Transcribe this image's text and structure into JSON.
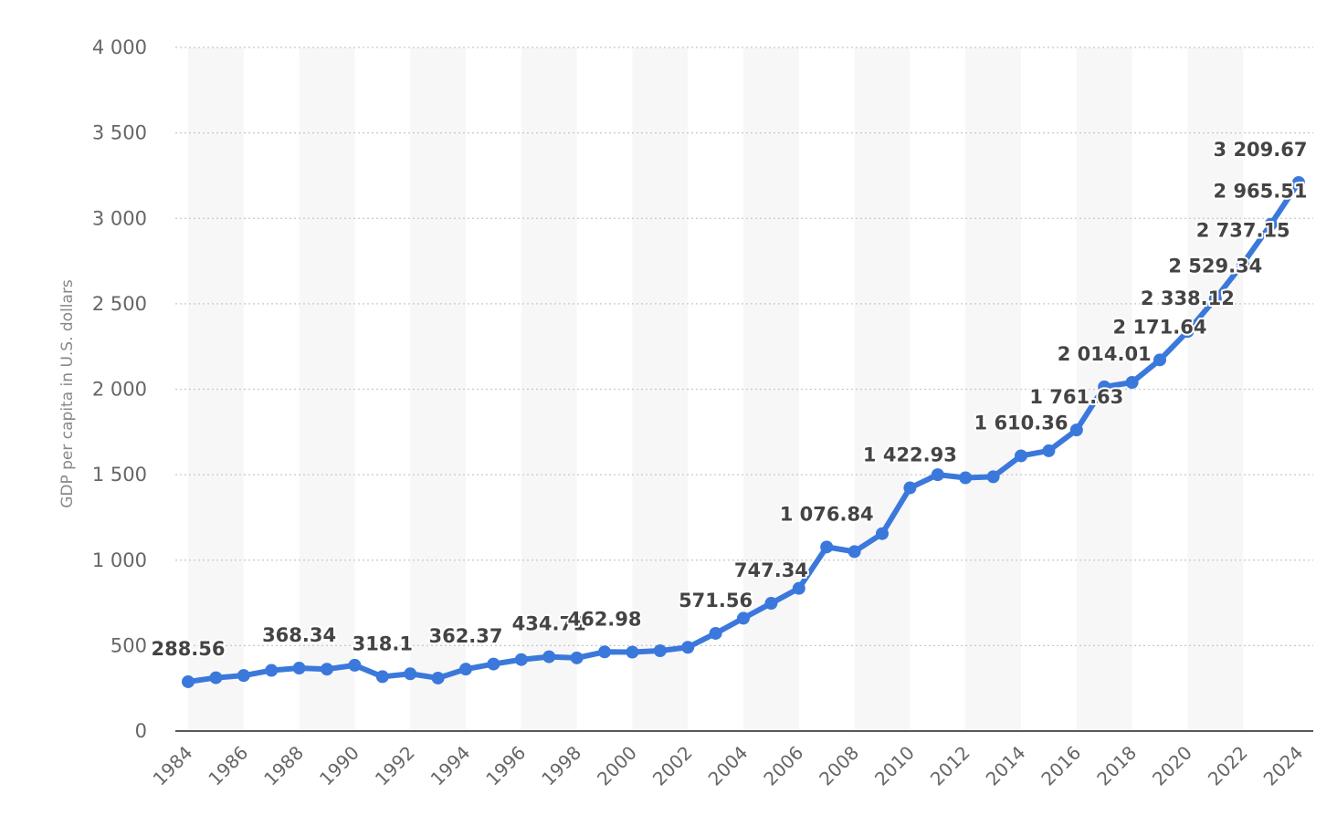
{
  "chart_data": {
    "type": "line",
    "x": [
      1984,
      1985,
      1986,
      1987,
      1988,
      1989,
      1990,
      1991,
      1992,
      1993,
      1994,
      1995,
      1996,
      1997,
      1998,
      1999,
      2000,
      2001,
      2002,
      2003,
      2004,
      2005,
      2006,
      2007,
      2008,
      2009,
      2010,
      2011,
      2012,
      2013,
      2014,
      2015,
      2016,
      2017,
      2018,
      2019,
      2020,
      2021,
      2022,
      2023,
      2024
    ],
    "series": [
      {
        "values": [
          288.56,
          312,
          325,
          355,
          368.34,
          362,
          385,
          318.1,
          335,
          310,
          362.37,
          392,
          418,
          434.71,
          428,
          462.98,
          462,
          470,
          490,
          571.56,
          660,
          747.34,
          835,
          1076.84,
          1050,
          1155,
          1422.93,
          1500,
          1482,
          1488,
          1610.36,
          1640,
          1761.63,
          2014.01,
          2040,
          2171.64,
          2338.12,
          2529.34,
          2737.15,
          2965.51,
          3209.67
        ],
        "color": "#3b78dc"
      }
    ],
    "data_labels": [
      {
        "year": 1984,
        "text": "288.56"
      },
      {
        "year": 1988,
        "text": "368.34"
      },
      {
        "year": 1991,
        "text": "318.1"
      },
      {
        "year": 1994,
        "text": "362.37"
      },
      {
        "year": 1997,
        "text": "434.71"
      },
      {
        "year": 1999,
        "text": "462.98"
      },
      {
        "year": 2003,
        "text": "571.56"
      },
      {
        "year": 2005,
        "text": "747.34"
      },
      {
        "year": 2007,
        "text": "1 076.84"
      },
      {
        "year": 2010,
        "text": "1 422.93"
      },
      {
        "year": 2014,
        "text": "1 610.36"
      },
      {
        "year": 2016,
        "text": "1 761.63"
      },
      {
        "year": 2017,
        "text": "2 014.01"
      },
      {
        "year": 2019,
        "text": "2 171.64"
      },
      {
        "year": 2020,
        "text": "2 338.12"
      },
      {
        "year": 2021,
        "text": "2 529.34"
      },
      {
        "year": 2022,
        "text": "2 737.15"
      },
      {
        "year": 2023,
        "text": "2 965.51"
      },
      {
        "year": 2024,
        "text": "3 209.67"
      }
    ],
    "ylabel": "GDP per capita in U.S. dollars",
    "xlabel": "",
    "ylim": [
      0,
      4000
    ],
    "y_ticks": [
      0,
      500,
      1000,
      1500,
      2000,
      2500,
      3000,
      3500,
      4000
    ],
    "y_tick_labels": [
      "0",
      "500",
      "1 000",
      "1 500",
      "2 000",
      "2 500",
      "3 000",
      "3 500",
      "4 000"
    ],
    "x_ticks": [
      1984,
      1986,
      1988,
      1990,
      1992,
      1994,
      1996,
      1998,
      2000,
      2002,
      2004,
      2006,
      2008,
      2010,
      2012,
      2014,
      2016,
      2018,
      2020,
      2022,
      2024
    ],
    "x_tick_labels": [
      "1984",
      "1986",
      "1988",
      "1990",
      "1992",
      "1994",
      "1996",
      "1998",
      "2000",
      "2002",
      "2004",
      "2006",
      "2008",
      "2010",
      "2012",
      "2014",
      "2016",
      "2018",
      "2020",
      "2022",
      "2024"
    ],
    "grid": true,
    "legend": "none"
  }
}
